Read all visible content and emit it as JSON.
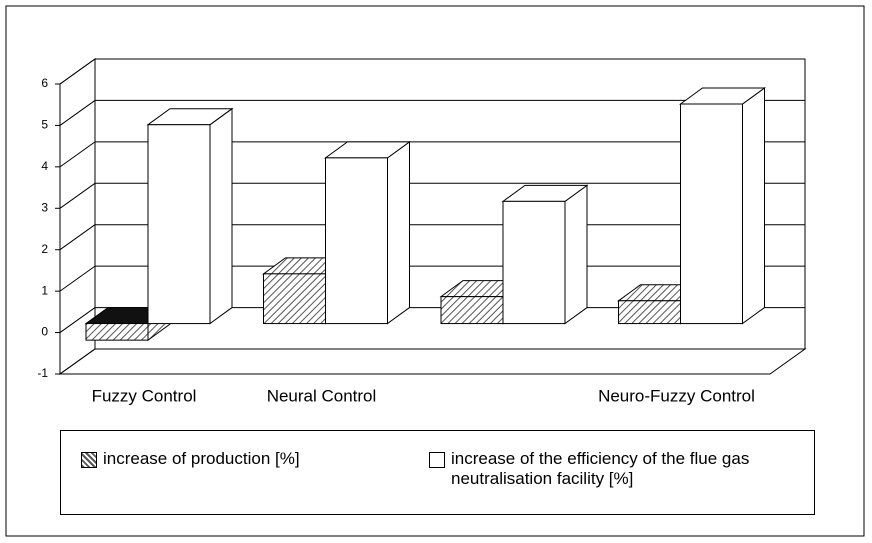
{
  "chart_data": {
    "type": "bar3d",
    "categories": [
      "Fuzzy Control",
      "Neural Control",
      null,
      "Neuro-Fuzzy Control"
    ],
    "series": [
      {
        "name": "increase of production [%]",
        "color": "#555555",
        "values": [
          -0.4,
          1.2,
          0.65,
          0.55
        ]
      },
      {
        "name": "increase of the efficiency of the flue gas neutralisation facility [%]",
        "color": "#ffffff",
        "values": [
          4.8,
          4.0,
          2.95,
          5.3
        ]
      }
    ],
    "ylim": [
      -1,
      6
    ],
    "yticks": [
      -1,
      0,
      1,
      2,
      3,
      4,
      5,
      6
    ],
    "grid": true,
    "legend": "bottom"
  }
}
